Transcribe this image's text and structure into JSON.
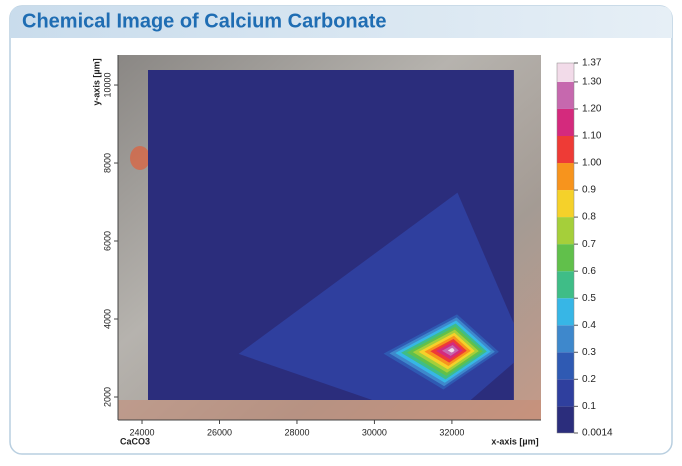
{
  "chart_data": {
    "type": "contour",
    "title": "Chemical Image of Calcium Carbonate",
    "x_label": "x-axis [µm]",
    "y_label": "y-axis [µm]",
    "series_label": "CaCO3",
    "xlim": [
      23380,
      34300
    ],
    "ylim": [
      1410,
      10770
    ],
    "xticks": [
      24000,
      26000,
      28000,
      30000,
      32000
    ],
    "yticks": [
      2000,
      4000,
      6000,
      8000,
      10000
    ],
    "extent": {
      "x": [
        24150,
        33600
      ],
      "y": [
        1920,
        10390
      ]
    },
    "peak": {
      "x": 32000,
      "y": 3200,
      "value": 1.37
    },
    "colorbar": {
      "ticks": [
        0.0014,
        0.1,
        0.2,
        0.3,
        0.4,
        0.5,
        0.6,
        0.7,
        0.8,
        0.9,
        {
          "value": 1,
          "label": "1.00"
        },
        {
          "value": 1.1,
          "label": "1.10"
        },
        {
          "value": 1.2,
          "label": "1.20"
        },
        {
          "value": 1.3,
          "label": "1.30"
        },
        1.37
      ],
      "colors": [
        "#2b2d7c",
        "#2f3f9e",
        "#2f5ab3",
        "#3e88cc",
        "#37b6e6",
        "#3fbd87",
        "#61c04b",
        "#a5cf3a",
        "#f5d12a",
        "#f7941d",
        "#ee3b36",
        "#d42a7d",
        "#c668ae",
        "#f2dbe9"
      ]
    }
  }
}
